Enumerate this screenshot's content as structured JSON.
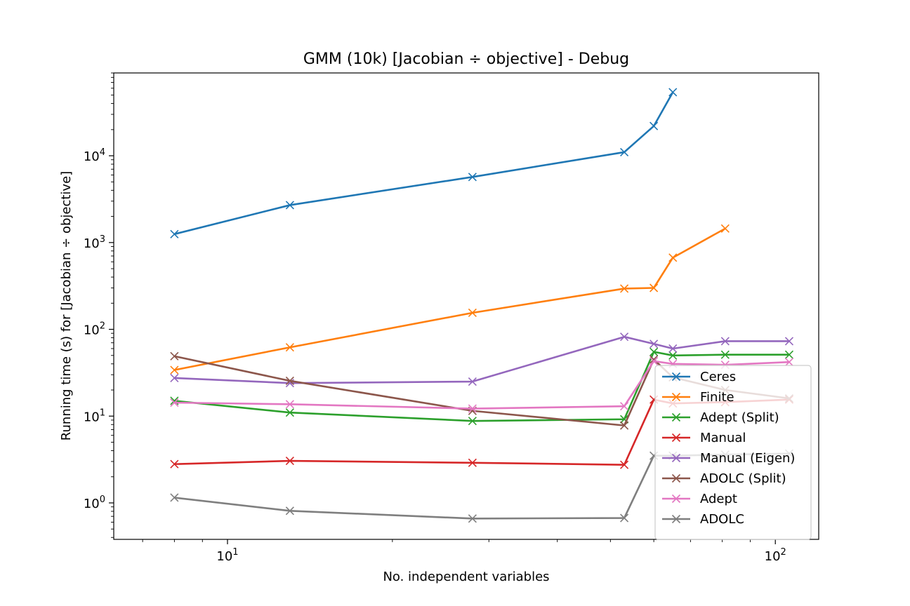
{
  "chart_data": {
    "type": "line",
    "title": "GMM (10k) [Jacobian ÷ objective] - Debug",
    "xlabel": "No. independent variables",
    "ylabel": "Running time (s) for [Jacobian ÷ objective]",
    "xscale": "log",
    "yscale": "log",
    "xlim": [
      6.2,
      120
    ],
    "ylim": [
      0.38,
      90000
    ],
    "x_ticks": [
      {
        "value": 10,
        "base": "10",
        "exp": "1"
      },
      {
        "value": 100,
        "base": "10",
        "exp": "2"
      }
    ],
    "y_ticks": [
      {
        "value": 1,
        "base": "10",
        "exp": "0"
      },
      {
        "value": 10,
        "base": "10",
        "exp": "1"
      },
      {
        "value": 100,
        "base": "10",
        "exp": "2"
      },
      {
        "value": 1000,
        "base": "10",
        "exp": "3"
      },
      {
        "value": 10000,
        "base": "10",
        "exp": "4"
      }
    ],
    "grid": false,
    "legend_position": "bottom-right",
    "marker": "x",
    "series": [
      {
        "name": "Ceres",
        "color": "#1f77b4",
        "x": [
          8,
          13,
          28,
          53,
          60,
          65
        ],
        "y": [
          1250,
          2700,
          5700,
          11000,
          22000,
          54000
        ]
      },
      {
        "name": "Finite",
        "color": "#ff7f0e",
        "x": [
          8,
          13,
          28,
          53,
          60,
          65,
          81
        ],
        "y": [
          34,
          62,
          155,
          295,
          300,
          670,
          1450
        ]
      },
      {
        "name": "Adept (Split)",
        "color": "#2ca02c",
        "x": [
          8,
          13,
          28,
          53,
          60,
          65,
          81,
          106
        ],
        "y": [
          15,
          11,
          8.8,
          9.2,
          55,
          50,
          51,
          51
        ]
      },
      {
        "name": "Manual",
        "color": "#d62728",
        "x": [
          8,
          13,
          28,
          53,
          60,
          65,
          81,
          106
        ],
        "y": [
          2.8,
          3.05,
          2.9,
          2.75,
          15.5,
          14,
          14.5,
          15.5
        ]
      },
      {
        "name": "Manual (Eigen)",
        "color": "#9467bd",
        "x": [
          8,
          13,
          28,
          53,
          60,
          65,
          81,
          106
        ],
        "y": [
          27.5,
          24,
          25,
          82,
          68,
          60,
          73,
          73
        ]
      },
      {
        "name": "ADOLC (Split)",
        "color": "#8c564b",
        "x": [
          8,
          13,
          28,
          53,
          60,
          65,
          81,
          106
        ],
        "y": [
          49,
          25.5,
          11.5,
          7.8,
          45,
          28,
          20,
          16
        ]
      },
      {
        "name": "Adept",
        "color": "#e377c2",
        "x": [
          8,
          13,
          28,
          53,
          60,
          65,
          81,
          106
        ],
        "y": [
          14.3,
          13.7,
          12.2,
          13,
          43,
          40,
          39,
          42
        ]
      },
      {
        "name": "ADOLC",
        "color": "#7f7f7f",
        "x": [
          8,
          13,
          28,
          53,
          60,
          65,
          81,
          106
        ],
        "y": [
          1.15,
          0.81,
          0.66,
          0.67,
          3.5,
          3.5,
          3.6,
          3.7
        ]
      }
    ]
  }
}
